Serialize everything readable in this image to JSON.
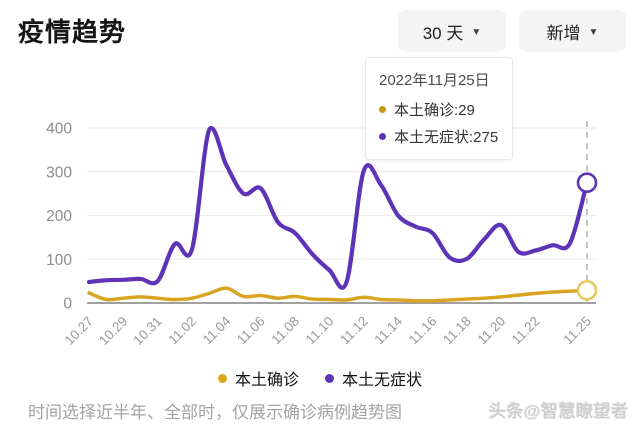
{
  "header": {
    "title": "疫情趋势",
    "range_button": {
      "label": "30 天",
      "caret": "▼"
    },
    "metric_button": {
      "label": "新增",
      "caret": "▼"
    }
  },
  "tooltip": {
    "date": "2022年11月25日",
    "rows": [
      {
        "text": "本土确诊:29",
        "color": "#c9970f"
      },
      {
        "text": "本土无症状:275",
        "color": "#5d33b8"
      }
    ]
  },
  "legend": [
    {
      "label": "本土确诊",
      "color": "#d9a420"
    },
    {
      "label": "本土无症状",
      "color": "#5d33b8"
    }
  ],
  "footer": {
    "caption": "时间选择近半年、全部时，仅展示确诊病例趋势图",
    "watermark": "头条@智慧瞭望者"
  },
  "chart_data": {
    "type": "line",
    "title": "疫情趋势",
    "x": [
      "10.27",
      "10.28",
      "10.29",
      "10.30",
      "10.31",
      "11.01",
      "11.02",
      "11.03",
      "11.04",
      "11.05",
      "11.06",
      "11.07",
      "11.08",
      "11.09",
      "11.10",
      "11.11",
      "11.12",
      "11.13",
      "11.14",
      "11.15",
      "11.16",
      "11.17",
      "11.18",
      "11.19",
      "11.20",
      "11.21",
      "11.22",
      "11.23",
      "11.24",
      "11.25"
    ],
    "x_tick_labels": [
      "10.27",
      "10.29",
      "10.31",
      "11.02",
      "11.04",
      "11.06",
      "11.08",
      "11.10",
      "11.12",
      "11.14",
      "11.16",
      "11.18",
      "11.20",
      "11.22",
      "11.25"
    ],
    "series": [
      {
        "name": "本土确诊",
        "color": "#d9a420",
        "marker_color": "#e9c863",
        "values": [
          23,
          8,
          11,
          14,
          11,
          8,
          11,
          22,
          34,
          15,
          17,
          11,
          15,
          9,
          8,
          7,
          13,
          8,
          7,
          5,
          5,
          7,
          9,
          11,
          14,
          18,
          22,
          25,
          27,
          29
        ]
      },
      {
        "name": "本土无症状",
        "color": "#5d33b8",
        "marker_color": "#5d33b8",
        "values": [
          48,
          52,
          53,
          55,
          50,
          135,
          123,
          396,
          315,
          250,
          262,
          185,
          160,
          112,
          75,
          48,
          302,
          270,
          200,
          175,
          160,
          104,
          101,
          145,
          178,
          117,
          120,
          132,
          136,
          275
        ]
      }
    ],
    "ylim": [
      0,
      400
    ],
    "yticks": [
      0,
      100,
      200,
      300,
      400
    ],
    "highlight_x": "11.25",
    "highlight_values": {
      "本土确诊": 29,
      "本土无症状": 275
    },
    "grid": true,
    "legend_position": "bottom",
    "colors": {
      "grid": "#ededed",
      "axis": "#a0a0a0",
      "tick_text": "#8c8c8c",
      "dashline": "#b0b0b0"
    }
  }
}
